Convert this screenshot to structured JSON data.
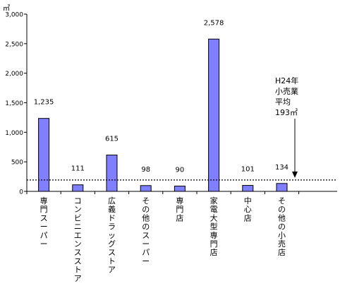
{
  "chart_data": {
    "type": "bar",
    "unit_label": "㎡",
    "categories": [
      "専門スーパー",
      "コンビニエンスストア",
      "広義ドラッグストア",
      "その他のスーパー",
      "専門店",
      "家電大型専門店",
      "中心店",
      "その他の小売店"
    ],
    "values": [
      1235,
      111,
      615,
      98,
      90,
      2578,
      101,
      134
    ],
    "value_labels": [
      "1,235",
      "111",
      "615",
      "98",
      "90",
      "2,578",
      "101",
      "134"
    ],
    "y_ticks": [
      0,
      500,
      1000,
      1500,
      2000,
      2500,
      3000
    ],
    "y_tick_labels": [
      "0",
      "500",
      "1,000",
      "1,500",
      "2,000",
      "2,500",
      "3,000"
    ],
    "ylim": [
      0,
      3000
    ],
    "reference_line": {
      "value": 193,
      "label_lines": [
        "H24年",
        "小売業",
        "平均",
        "193㎡"
      ]
    },
    "bar_color": "#7f7fff",
    "grid": false,
    "legend": "none"
  }
}
